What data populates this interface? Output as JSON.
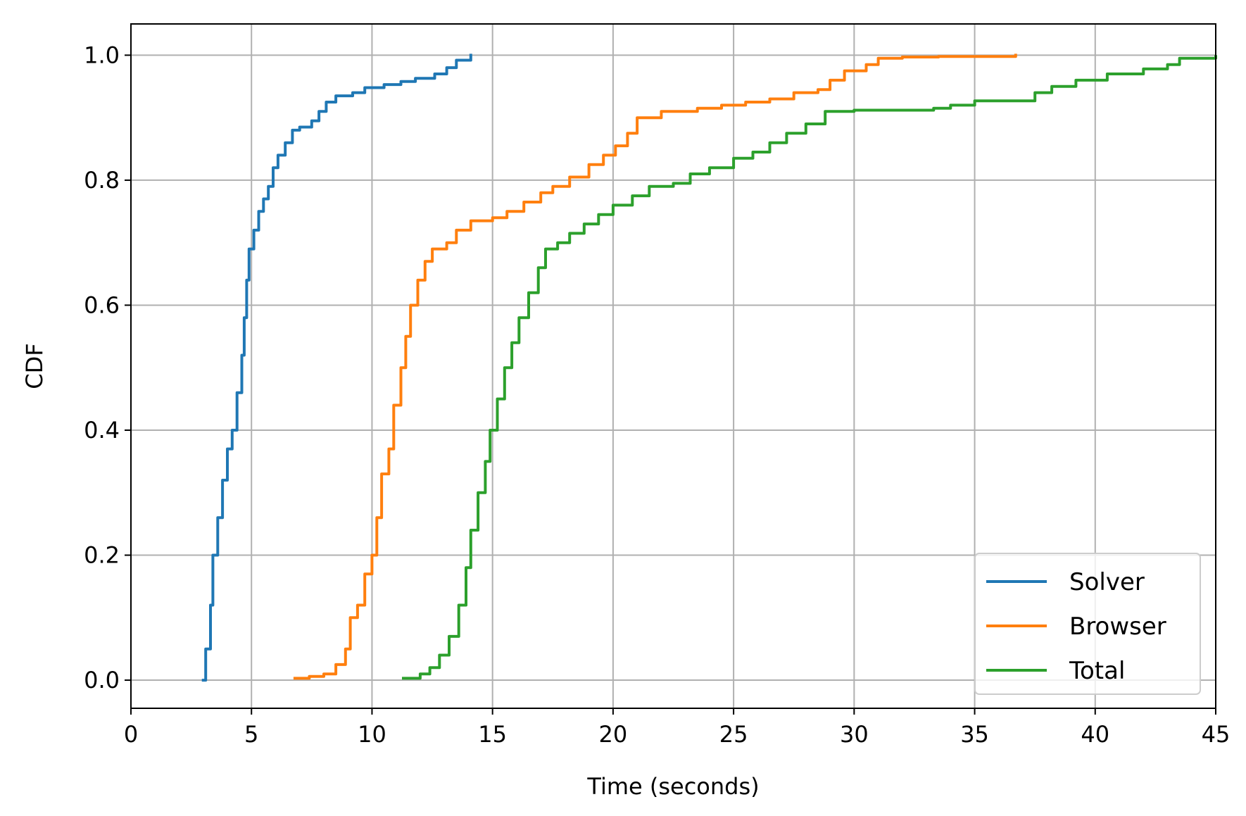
{
  "chart_data": {
    "type": "line",
    "title": "",
    "xlabel": "Time (seconds)",
    "ylabel": "CDF",
    "xlim": [
      0,
      45
    ],
    "ylim": [
      -0.045,
      1.05
    ],
    "xticks": [
      0,
      5,
      10,
      15,
      20,
      25,
      30,
      35,
      40,
      45
    ],
    "xtick_labels": [
      "0",
      "5",
      "10",
      "15",
      "20",
      "25",
      "30",
      "35",
      "40",
      "45"
    ],
    "yticks": [
      0.0,
      0.2,
      0.4,
      0.6,
      0.8,
      1.0
    ],
    "ytick_labels": [
      "0.0",
      "0.2",
      "0.4",
      "0.6",
      "0.8",
      "1.0"
    ],
    "grid": true,
    "legend_position": "lower-right",
    "series": [
      {
        "name": "Solver",
        "color": "#1f77b4",
        "points": [
          [
            3.0,
            0.0
          ],
          [
            3.1,
            0.05
          ],
          [
            3.3,
            0.12
          ],
          [
            3.4,
            0.2
          ],
          [
            3.6,
            0.26
          ],
          [
            3.8,
            0.32
          ],
          [
            4.0,
            0.37
          ],
          [
            4.2,
            0.4
          ],
          [
            4.4,
            0.46
          ],
          [
            4.6,
            0.52
          ],
          [
            4.7,
            0.58
          ],
          [
            4.8,
            0.64
          ],
          [
            4.9,
            0.69
          ],
          [
            5.1,
            0.72
          ],
          [
            5.3,
            0.75
          ],
          [
            5.5,
            0.77
          ],
          [
            5.7,
            0.79
          ],
          [
            5.9,
            0.82
          ],
          [
            6.1,
            0.84
          ],
          [
            6.4,
            0.86
          ],
          [
            6.7,
            0.88
          ],
          [
            7.0,
            0.885
          ],
          [
            7.5,
            0.895
          ],
          [
            7.8,
            0.91
          ],
          [
            8.1,
            0.925
          ],
          [
            8.5,
            0.935
          ],
          [
            9.2,
            0.94
          ],
          [
            9.7,
            0.948
          ],
          [
            10.5,
            0.953
          ],
          [
            11.2,
            0.958
          ],
          [
            11.8,
            0.963
          ],
          [
            12.6,
            0.97
          ],
          [
            13.1,
            0.98
          ],
          [
            13.5,
            0.992
          ],
          [
            14.1,
            1.0
          ]
        ]
      },
      {
        "name": "Browser",
        "color": "#ff7f0e",
        "points": [
          [
            6.8,
            0.003
          ],
          [
            7.4,
            0.006
          ],
          [
            8.0,
            0.01
          ],
          [
            8.5,
            0.025
          ],
          [
            8.9,
            0.05
          ],
          [
            9.1,
            0.1
          ],
          [
            9.4,
            0.12
          ],
          [
            9.7,
            0.17
          ],
          [
            10.0,
            0.2
          ],
          [
            10.2,
            0.26
          ],
          [
            10.4,
            0.33
          ],
          [
            10.7,
            0.37
          ],
          [
            10.9,
            0.44
          ],
          [
            11.2,
            0.5
          ],
          [
            11.4,
            0.55
          ],
          [
            11.6,
            0.6
          ],
          [
            11.9,
            0.64
          ],
          [
            12.2,
            0.67
          ],
          [
            12.5,
            0.69
          ],
          [
            13.1,
            0.7
          ],
          [
            13.5,
            0.72
          ],
          [
            14.1,
            0.735
          ],
          [
            15.0,
            0.74
          ],
          [
            15.6,
            0.75
          ],
          [
            16.3,
            0.765
          ],
          [
            17.0,
            0.78
          ],
          [
            17.5,
            0.79
          ],
          [
            18.2,
            0.805
          ],
          [
            19.0,
            0.825
          ],
          [
            19.6,
            0.84
          ],
          [
            20.1,
            0.855
          ],
          [
            20.6,
            0.875
          ],
          [
            21.0,
            0.9
          ],
          [
            22.0,
            0.91
          ],
          [
            23.5,
            0.915
          ],
          [
            24.5,
            0.92
          ],
          [
            25.5,
            0.925
          ],
          [
            26.5,
            0.93
          ],
          [
            27.5,
            0.94
          ],
          [
            28.5,
            0.945
          ],
          [
            29.0,
            0.96
          ],
          [
            29.6,
            0.975
          ],
          [
            30.5,
            0.985
          ],
          [
            31.0,
            0.995
          ],
          [
            32.0,
            0.997
          ],
          [
            33.5,
            0.998
          ],
          [
            36.7,
            1.0
          ]
        ]
      },
      {
        "name": "Total",
        "color": "#2ca02c",
        "points": [
          [
            11.3,
            0.003
          ],
          [
            12.0,
            0.01
          ],
          [
            12.4,
            0.02
          ],
          [
            12.8,
            0.04
          ],
          [
            13.2,
            0.07
          ],
          [
            13.6,
            0.12
          ],
          [
            13.9,
            0.18
          ],
          [
            14.1,
            0.24
          ],
          [
            14.4,
            0.3
          ],
          [
            14.7,
            0.35
          ],
          [
            14.9,
            0.4
          ],
          [
            15.2,
            0.45
          ],
          [
            15.5,
            0.5
          ],
          [
            15.8,
            0.54
          ],
          [
            16.1,
            0.58
          ],
          [
            16.5,
            0.62
          ],
          [
            16.9,
            0.66
          ],
          [
            17.2,
            0.69
          ],
          [
            17.7,
            0.7
          ],
          [
            18.2,
            0.715
          ],
          [
            18.8,
            0.73
          ],
          [
            19.4,
            0.745
          ],
          [
            20.0,
            0.76
          ],
          [
            20.8,
            0.775
          ],
          [
            21.5,
            0.79
          ],
          [
            22.5,
            0.795
          ],
          [
            23.2,
            0.81
          ],
          [
            24.0,
            0.82
          ],
          [
            25.0,
            0.835
          ],
          [
            25.8,
            0.845
          ],
          [
            26.5,
            0.86
          ],
          [
            27.2,
            0.875
          ],
          [
            28.0,
            0.89
          ],
          [
            28.8,
            0.91
          ],
          [
            30.0,
            0.912
          ],
          [
            33.3,
            0.915
          ],
          [
            34.0,
            0.92
          ],
          [
            35.0,
            0.927
          ],
          [
            37.5,
            0.94
          ],
          [
            38.2,
            0.95
          ],
          [
            39.2,
            0.96
          ],
          [
            40.5,
            0.97
          ],
          [
            42.0,
            0.978
          ],
          [
            43.0,
            0.985
          ],
          [
            43.5,
            0.995
          ],
          [
            45.0,
            0.998
          ]
        ]
      }
    ]
  }
}
